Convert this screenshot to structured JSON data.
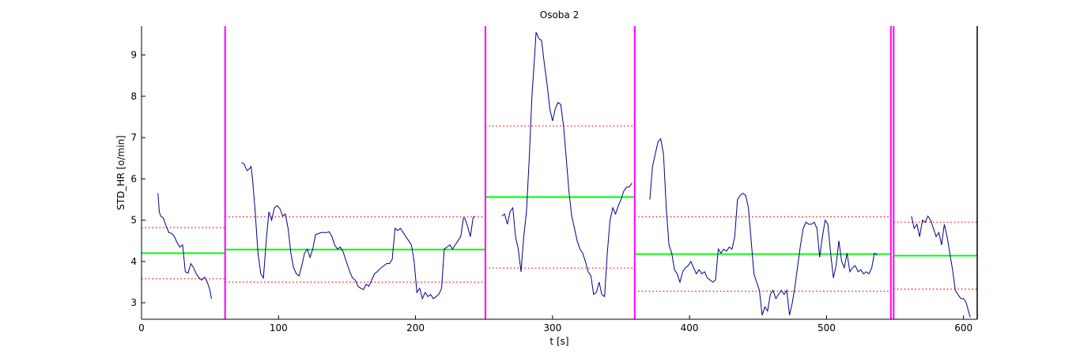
{
  "chart_data": {
    "type": "line",
    "title": "Osoba 2",
    "xlabel": "t [s]",
    "ylabel": "STD_HR [o/min]",
    "xlim": [
      0,
      610
    ],
    "ylim": [
      2.6,
      9.7
    ],
    "x_ticks": [
      0,
      100,
      200,
      300,
      400,
      500,
      600
    ],
    "y_ticks": [
      3,
      4,
      5,
      6,
      7,
      8,
      9
    ],
    "grid": false,
    "colors": {
      "signal": "#00008b",
      "boundary": "#ff00ff",
      "mean": "#00ff00",
      "limit": "#ff0000"
    },
    "boundaries": [
      61,
      251,
      360,
      547,
      549
    ],
    "segments": [
      {
        "x_start": 0,
        "x_end": 61,
        "mean": 4.2,
        "upper": 4.82,
        "lower": 3.58
      },
      {
        "x_start": 61,
        "x_end": 251,
        "mean": 4.29,
        "upper": 5.08,
        "lower": 3.5
      },
      {
        "x_start": 251,
        "x_end": 360,
        "mean": 5.56,
        "upper": 7.28,
        "lower": 3.84
      },
      {
        "x_start": 360,
        "x_end": 547,
        "mean": 4.18,
        "upper": 5.08,
        "lower": 3.28
      },
      {
        "x_start": 549,
        "x_end": 610,
        "mean": 4.14,
        "upper": 4.95,
        "lower": 3.33
      }
    ],
    "series": [
      {
        "points": [
          [
            12,
            5.65
          ],
          [
            13,
            5.2
          ],
          [
            14,
            5.1
          ],
          [
            16,
            5.05
          ],
          [
            18,
            4.85
          ],
          [
            20,
            4.7
          ],
          [
            22,
            4.68
          ],
          [
            24,
            4.6
          ],
          [
            26,
            4.45
          ],
          [
            28,
            4.35
          ],
          [
            30,
            4.4
          ],
          [
            32,
            3.75
          ],
          [
            34,
            3.72
          ],
          [
            36,
            3.95
          ],
          [
            38,
            3.85
          ],
          [
            40,
            3.7
          ],
          [
            42,
            3.6
          ],
          [
            44,
            3.55
          ],
          [
            46,
            3.62
          ],
          [
            48,
            3.5
          ],
          [
            50,
            3.3
          ],
          [
            51,
            3.1
          ]
        ]
      },
      {
        "points": [
          [
            73,
            6.4
          ],
          [
            75,
            6.35
          ],
          [
            77,
            6.2
          ],
          [
            79,
            6.25
          ],
          [
            80,
            6.3
          ],
          [
            81,
            6.0
          ],
          [
            83,
            5.2
          ],
          [
            85,
            4.2
          ],
          [
            87,
            3.7
          ],
          [
            89,
            3.6
          ],
          [
            91,
            4.5
          ],
          [
            93,
            5.2
          ],
          [
            95,
            5.0
          ],
          [
            97,
            5.3
          ],
          [
            99,
            5.35
          ],
          [
            101,
            5.28
          ],
          [
            103,
            5.1
          ],
          [
            105,
            5.15
          ],
          [
            107,
            4.8
          ],
          [
            109,
            4.2
          ],
          [
            111,
            3.85
          ],
          [
            113,
            3.7
          ],
          [
            115,
            3.65
          ],
          [
            117,
            3.9
          ],
          [
            119,
            4.2
          ],
          [
            121,
            4.3
          ],
          [
            123,
            4.1
          ],
          [
            125,
            4.3
          ],
          [
            127,
            4.65
          ],
          [
            131,
            4.7
          ],
          [
            135,
            4.7
          ],
          [
            137,
            4.72
          ],
          [
            139,
            4.6
          ],
          [
            141,
            4.4
          ],
          [
            143,
            4.3
          ],
          [
            145,
            4.35
          ],
          [
            147,
            4.25
          ],
          [
            150,
            3.95
          ],
          [
            152,
            3.75
          ],
          [
            154,
            3.6
          ],
          [
            156,
            3.55
          ],
          [
            158,
            3.4
          ],
          [
            160,
            3.35
          ],
          [
            162,
            3.32
          ],
          [
            164,
            3.45
          ],
          [
            166,
            3.4
          ],
          [
            168,
            3.55
          ],
          [
            170,
            3.7
          ],
          [
            172,
            3.75
          ],
          [
            175,
            3.85
          ],
          [
            177,
            3.9
          ],
          [
            179,
            3.95
          ],
          [
            181,
            3.95
          ],
          [
            183,
            4.05
          ],
          [
            185,
            4.8
          ],
          [
            187,
            4.75
          ],
          [
            189,
            4.8
          ],
          [
            191,
            4.7
          ],
          [
            193,
            4.6
          ],
          [
            195,
            4.5
          ],
          [
            197,
            4.4
          ],
          [
            199,
            4.0
          ],
          [
            201,
            3.25
          ],
          [
            203,
            3.35
          ],
          [
            205,
            3.1
          ],
          [
            207,
            3.25
          ],
          [
            209,
            3.15
          ],
          [
            211,
            3.2
          ],
          [
            213,
            3.1
          ],
          [
            215,
            3.15
          ],
          [
            217,
            3.2
          ],
          [
            219,
            3.35
          ],
          [
            221,
            4.3
          ],
          [
            223,
            4.35
          ],
          [
            225,
            4.4
          ],
          [
            227,
            4.3
          ],
          [
            229,
            4.4
          ],
          [
            231,
            4.5
          ],
          [
            233,
            4.6
          ],
          [
            235,
            5.05
          ],
          [
            236,
            5.05
          ],
          [
            238,
            4.85
          ],
          [
            240,
            4.6
          ],
          [
            242,
            5.05
          ],
          [
            243,
            5.1
          ]
        ]
      },
      {
        "points": [
          [
            263,
            5.1
          ],
          [
            265,
            5.15
          ],
          [
            267,
            4.9
          ],
          [
            269,
            5.2
          ],
          [
            271,
            5.3
          ],
          [
            273,
            4.6
          ],
          [
            275,
            4.3
          ],
          [
            277,
            3.75
          ],
          [
            279,
            4.6
          ],
          [
            281,
            5.2
          ],
          [
            283,
            6.5
          ],
          [
            285,
            8.0
          ],
          [
            287,
            9.0
          ],
          [
            288,
            9.55
          ],
          [
            290,
            9.4
          ],
          [
            292,
            9.35
          ],
          [
            294,
            8.8
          ],
          [
            296,
            8.3
          ],
          [
            298,
            7.7
          ],
          [
            300,
            7.4
          ],
          [
            302,
            7.7
          ],
          [
            304,
            7.85
          ],
          [
            306,
            7.8
          ],
          [
            308,
            7.3
          ],
          [
            310,
            6.5
          ],
          [
            312,
            5.7
          ],
          [
            314,
            5.1
          ],
          [
            316,
            4.8
          ],
          [
            318,
            4.5
          ],
          [
            320,
            4.3
          ],
          [
            322,
            4.2
          ],
          [
            324,
            4.0
          ],
          [
            326,
            3.75
          ],
          [
            328,
            3.65
          ],
          [
            330,
            3.2
          ],
          [
            332,
            3.25
          ],
          [
            334,
            3.5
          ],
          [
            336,
            3.2
          ],
          [
            338,
            3.15
          ],
          [
            340,
            4.2
          ],
          [
            342,
            5.0
          ],
          [
            344,
            5.3
          ],
          [
            346,
            5.15
          ],
          [
            348,
            5.35
          ],
          [
            350,
            5.5
          ],
          [
            352,
            5.7
          ],
          [
            354,
            5.8
          ],
          [
            356,
            5.8
          ],
          [
            358,
            5.9
          ]
        ]
      },
      {
        "points": [
          [
            371,
            5.5
          ],
          [
            373,
            6.3
          ],
          [
            375,
            6.6
          ],
          [
            377,
            6.9
          ],
          [
            379,
            6.97
          ],
          [
            381,
            6.6
          ],
          [
            383,
            5.3
          ],
          [
            385,
            4.4
          ],
          [
            387,
            4.2
          ],
          [
            389,
            3.8
          ],
          [
            391,
            3.7
          ],
          [
            393,
            3.5
          ],
          [
            395,
            3.75
          ],
          [
            397,
            3.85
          ],
          [
            399,
            3.9
          ],
          [
            401,
            4.0
          ],
          [
            403,
            3.85
          ],
          [
            405,
            3.7
          ],
          [
            407,
            3.8
          ],
          [
            409,
            3.7
          ],
          [
            411,
            3.75
          ],
          [
            413,
            3.6
          ],
          [
            415,
            3.55
          ],
          [
            417,
            3.5
          ],
          [
            419,
            3.55
          ],
          [
            421,
            4.3
          ],
          [
            423,
            4.2
          ],
          [
            425,
            4.3
          ],
          [
            427,
            4.25
          ],
          [
            429,
            4.35
          ],
          [
            431,
            4.3
          ],
          [
            433,
            4.6
          ],
          [
            435,
            5.5
          ],
          [
            437,
            5.6
          ],
          [
            439,
            5.65
          ],
          [
            441,
            5.6
          ],
          [
            443,
            5.3
          ],
          [
            445,
            4.5
          ],
          [
            447,
            3.7
          ],
          [
            449,
            3.5
          ],
          [
            451,
            3.3
          ],
          [
            453,
            2.7
          ],
          [
            455,
            2.9
          ],
          [
            457,
            2.8
          ],
          [
            459,
            3.2
          ],
          [
            461,
            3.3
          ],
          [
            463,
            3.1
          ],
          [
            465,
            3.2
          ],
          [
            467,
            3.3
          ],
          [
            469,
            3.2
          ],
          [
            471,
            3.3
          ],
          [
            473,
            2.7
          ],
          [
            475,
            3.0
          ],
          [
            477,
            3.4
          ],
          [
            479,
            3.9
          ],
          [
            481,
            4.4
          ],
          [
            483,
            4.8
          ],
          [
            485,
            4.95
          ],
          [
            487,
            4.9
          ],
          [
            489,
            4.9
          ],
          [
            491,
            4.95
          ],
          [
            493,
            4.8
          ],
          [
            495,
            4.1
          ],
          [
            497,
            4.6
          ],
          [
            499,
            5.0
          ],
          [
            501,
            4.9
          ],
          [
            503,
            4.2
          ],
          [
            505,
            3.6
          ],
          [
            507,
            3.9
          ],
          [
            509,
            4.5
          ],
          [
            511,
            4.0
          ],
          [
            513,
            3.85
          ],
          [
            515,
            4.2
          ],
          [
            517,
            3.75
          ],
          [
            519,
            3.85
          ],
          [
            521,
            3.9
          ],
          [
            523,
            3.75
          ],
          [
            525,
            3.8
          ],
          [
            527,
            3.7
          ],
          [
            529,
            3.75
          ],
          [
            531,
            3.7
          ],
          [
            533,
            3.85
          ],
          [
            535,
            4.2
          ],
          [
            537,
            4.15
          ]
        ]
      },
      {
        "points": [
          [
            562,
            5.1
          ],
          [
            564,
            4.8
          ],
          [
            566,
            4.9
          ],
          [
            568,
            4.6
          ],
          [
            570,
            5.0
          ],
          [
            572,
            4.95
          ],
          [
            574,
            5.1
          ],
          [
            576,
            5.0
          ],
          [
            578,
            4.8
          ],
          [
            580,
            4.6
          ],
          [
            582,
            4.7
          ],
          [
            584,
            4.4
          ],
          [
            586,
            4.9
          ],
          [
            588,
            4.6
          ],
          [
            590,
            4.2
          ],
          [
            592,
            3.8
          ],
          [
            594,
            3.3
          ],
          [
            596,
            3.2
          ],
          [
            598,
            3.1
          ],
          [
            600,
            3.1
          ],
          [
            602,
            3.0
          ],
          [
            604,
            2.75
          ],
          [
            605,
            2.65
          ]
        ]
      }
    ]
  }
}
